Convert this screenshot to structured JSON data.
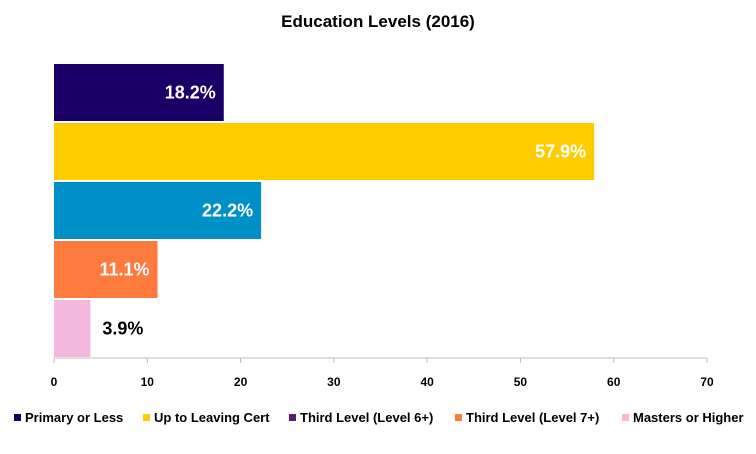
{
  "chart_data": {
    "type": "bar",
    "orientation": "horizontal",
    "title": "Education Levels (2016)",
    "xlabel": "",
    "ylabel": "",
    "xlim": [
      0,
      70
    ],
    "x_ticks": [
      0,
      10,
      20,
      30,
      40,
      50,
      60,
      70
    ],
    "grid": false,
    "legend_position": "bottom",
    "categories": [
      "Primary or Less",
      "Up to Leaving Cert",
      "Third Level (Level 6+)",
      "Third Level (Level 7+)",
      "Masters or Higher"
    ],
    "values": [
      18.2,
      57.9,
      22.2,
      11.1,
      3.9
    ],
    "data_labels": [
      "18.2%",
      "57.9%",
      "22.2%",
      "11.1%",
      "3.9%"
    ],
    "bar_colors": [
      "#1a0066",
      "#ffcc00",
      "#0090c8",
      "#ff7a3d",
      "#f4b8dc"
    ],
    "legend": [
      {
        "label": "Primary or Less",
        "color": "#1a0066"
      },
      {
        "label": "Up to Leaving Cert",
        "color": "#ffcc00"
      },
      {
        "label": "Third Level (Level 6+)",
        "color": "#5a1a7a"
      },
      {
        "label": "Third Level (Level 7+)",
        "color": "#ff7a3d"
      },
      {
        "label": "Masters or Higher",
        "color": "#f4b8dc"
      }
    ],
    "label_colors": [
      "#ffffff",
      "#ffffff",
      "#ffffff",
      "#ffffff",
      "#000000"
    ]
  }
}
